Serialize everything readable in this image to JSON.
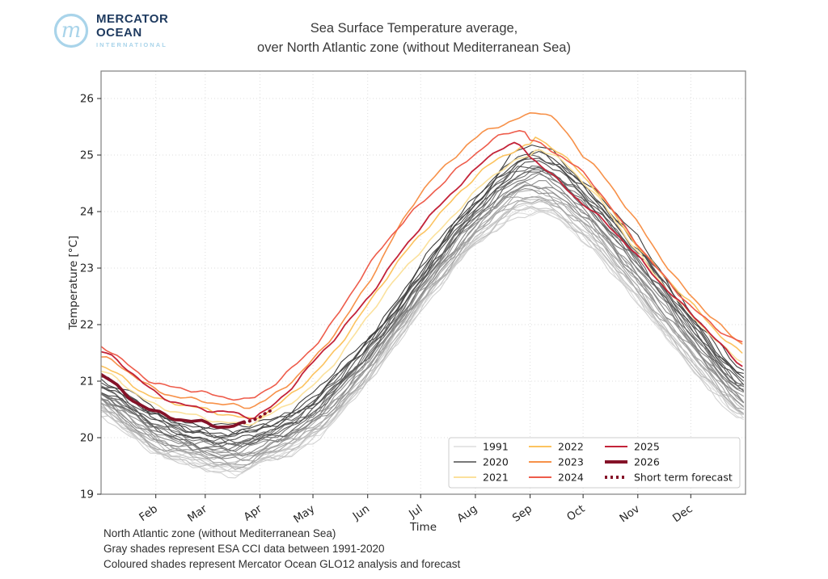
{
  "logo": {
    "monogram": "m",
    "line1": "MERCATOR",
    "line2": "OCEAN",
    "line3": "INTERNATIONAL",
    "circle_color": "#a9d4ea",
    "text_color": "#1e3a5f",
    "sub_color": "#a9d4ea"
  },
  "title": {
    "line1": "Sea Surface Temperature average,",
    "line2": "over North Atlantic zone (without Mediterranean Sea)"
  },
  "footer": {
    "line1": "North Atlantic zone (without Mediterranean Sea)",
    "line2": "Gray shades represent ESA CCI data between 1991-2020",
    "line3": "Coloured shades represent Mercator Ocean GLO12 analysis and forecast"
  },
  "chart_data": {
    "type": "line",
    "title": "Sea Surface Temperature average, over North Atlantic zone (without Mediterranean Sea)",
    "xlabel": "Time",
    "ylabel": "Temperature [°C]",
    "ylim": [
      19,
      26.49
    ],
    "yticks": [
      19,
      20,
      21,
      22,
      23,
      24,
      25,
      26
    ],
    "xticks": [
      "Feb",
      "Mar",
      "Apr",
      "May",
      "Jun",
      "Jul",
      "Aug",
      "Sep",
      "Oct",
      "Nov",
      "Dec"
    ],
    "xtick_days": [
      31,
      59,
      90,
      120,
      151,
      181,
      212,
      243,
      273,
      304,
      334
    ],
    "x_range_days": [
      0,
      365
    ],
    "grid": "dotted",
    "grid_color": "#dcdcdc",
    "spine_color": "#7f7f7f",
    "tick_color": "#262626",
    "series": [
      {
        "name": "2021",
        "color": "#fbe19c",
        "width": 1.6,
        "style": "solid",
        "days": [
          0,
          31,
          59,
          74,
          90,
          120,
          151,
          181,
          212,
          243,
          251,
          273,
          304,
          334,
          365
        ],
        "values": [
          21.15,
          20.6,
          20.32,
          20.27,
          20.35,
          20.9,
          22.15,
          23.3,
          24.35,
          25.0,
          25.1,
          24.5,
          23.3,
          22.15,
          21.35
        ]
      },
      {
        "name": "2022",
        "color": "#fcc35f",
        "width": 1.6,
        "style": "solid",
        "days": [
          0,
          31,
          59,
          74,
          90,
          120,
          151,
          181,
          212,
          243,
          248,
          273,
          304,
          334,
          365
        ],
        "values": [
          21.25,
          20.72,
          20.48,
          20.42,
          20.4,
          21.1,
          22.35,
          23.6,
          24.6,
          25.2,
          25.3,
          24.6,
          23.42,
          22.35,
          21.5
        ]
      },
      {
        "name": "2023",
        "color": "#f79149",
        "width": 1.6,
        "style": "solid",
        "days": [
          0,
          31,
          59,
          74,
          90,
          120,
          151,
          181,
          212,
          232,
          252,
          273,
          304,
          334,
          365
        ],
        "values": [
          21.4,
          20.88,
          20.62,
          20.57,
          20.65,
          21.35,
          22.75,
          24.3,
          25.3,
          25.55,
          25.75,
          25.0,
          23.8,
          22.5,
          21.65
        ]
      },
      {
        "name": "2024",
        "color": "#ee5c4b",
        "width": 1.6,
        "style": "solid",
        "days": [
          0,
          31,
          59,
          74,
          90,
          120,
          151,
          181,
          212,
          237,
          243,
          273,
          304,
          334,
          365
        ],
        "values": [
          21.6,
          20.98,
          20.78,
          20.73,
          20.78,
          21.6,
          23.0,
          24.15,
          25.0,
          25.45,
          25.3,
          24.65,
          23.45,
          22.3,
          21.7
        ]
      },
      {
        "name": "2025",
        "color": "#c32339",
        "width": 1.8,
        "style": "solid",
        "days": [
          0,
          31,
          59,
          74,
          90,
          120,
          151,
          181,
          212,
          232,
          243,
          273,
          304,
          334,
          365
        ],
        "values": [
          21.5,
          20.82,
          20.48,
          20.43,
          20.45,
          21.3,
          22.5,
          23.7,
          24.75,
          25.15,
          24.95,
          24.15,
          23.2,
          22.2,
          21.25
        ]
      },
      {
        "name": "2026",
        "color": "#851228",
        "width": 3.8,
        "style": "solid",
        "days": [
          0,
          15,
          31,
          45,
          59,
          70,
          81
        ],
        "values": [
          21.1,
          20.75,
          20.48,
          20.3,
          20.24,
          20.2,
          20.28
        ]
      },
      {
        "name": "Short term forecast",
        "color": "#851228",
        "width": 3.8,
        "style": "dotted",
        "days": [
          81,
          90,
          98
        ],
        "values": [
          20.28,
          20.38,
          20.5
        ]
      }
    ],
    "gray_ensemble": {
      "description": "ESA CCI climatology lines, one per year",
      "year_start": 1991,
      "year_end": 2020,
      "count": 30,
      "color_start": "#e3e3e3",
      "color_end": "#3c3c3c",
      "cool_curve": {
        "days": [
          0,
          31,
          59,
          74,
          90,
          120,
          151,
          181,
          212,
          243,
          273,
          304,
          334,
          365
        ],
        "values": [
          20.4,
          19.7,
          19.45,
          19.35,
          19.5,
          19.95,
          20.95,
          22.25,
          23.35,
          23.95,
          23.45,
          22.35,
          21.2,
          20.3
        ]
      },
      "warm_curve": {
        "days": [
          0,
          31,
          59,
          74,
          90,
          120,
          151,
          181,
          212,
          243,
          273,
          304,
          334,
          365
        ],
        "values": [
          21.0,
          20.4,
          20.15,
          20.1,
          20.2,
          20.7,
          21.7,
          22.95,
          24.2,
          25.05,
          24.5,
          23.4,
          22.2,
          21.05
        ]
      }
    },
    "legend": {
      "position": "lower right",
      "columns": [
        [
          {
            "label": "1991",
            "color": "#dedede",
            "width": 1.5,
            "dash": null
          },
          {
            "label": "2020",
            "color": "#4c4c4c",
            "width": 1.5,
            "dash": null
          },
          {
            "label": "2021",
            "color": "#fbe19c",
            "width": 2,
            "dash": null
          }
        ],
        [
          {
            "label": "2022",
            "color": "#fcc35f",
            "width": 2,
            "dash": null
          },
          {
            "label": "2023",
            "color": "#f79149",
            "width": 2,
            "dash": null
          },
          {
            "label": "2024",
            "color": "#ee5c4b",
            "width": 2,
            "dash": null
          }
        ],
        [
          {
            "label": "2025",
            "color": "#c32339",
            "width": 2,
            "dash": null
          },
          {
            "label": "2026",
            "color": "#851228",
            "width": 4,
            "dash": null
          },
          {
            "label": "Short term forecast",
            "color": "#851228",
            "width": 4,
            "dash": "3,4"
          }
        ]
      ]
    }
  }
}
